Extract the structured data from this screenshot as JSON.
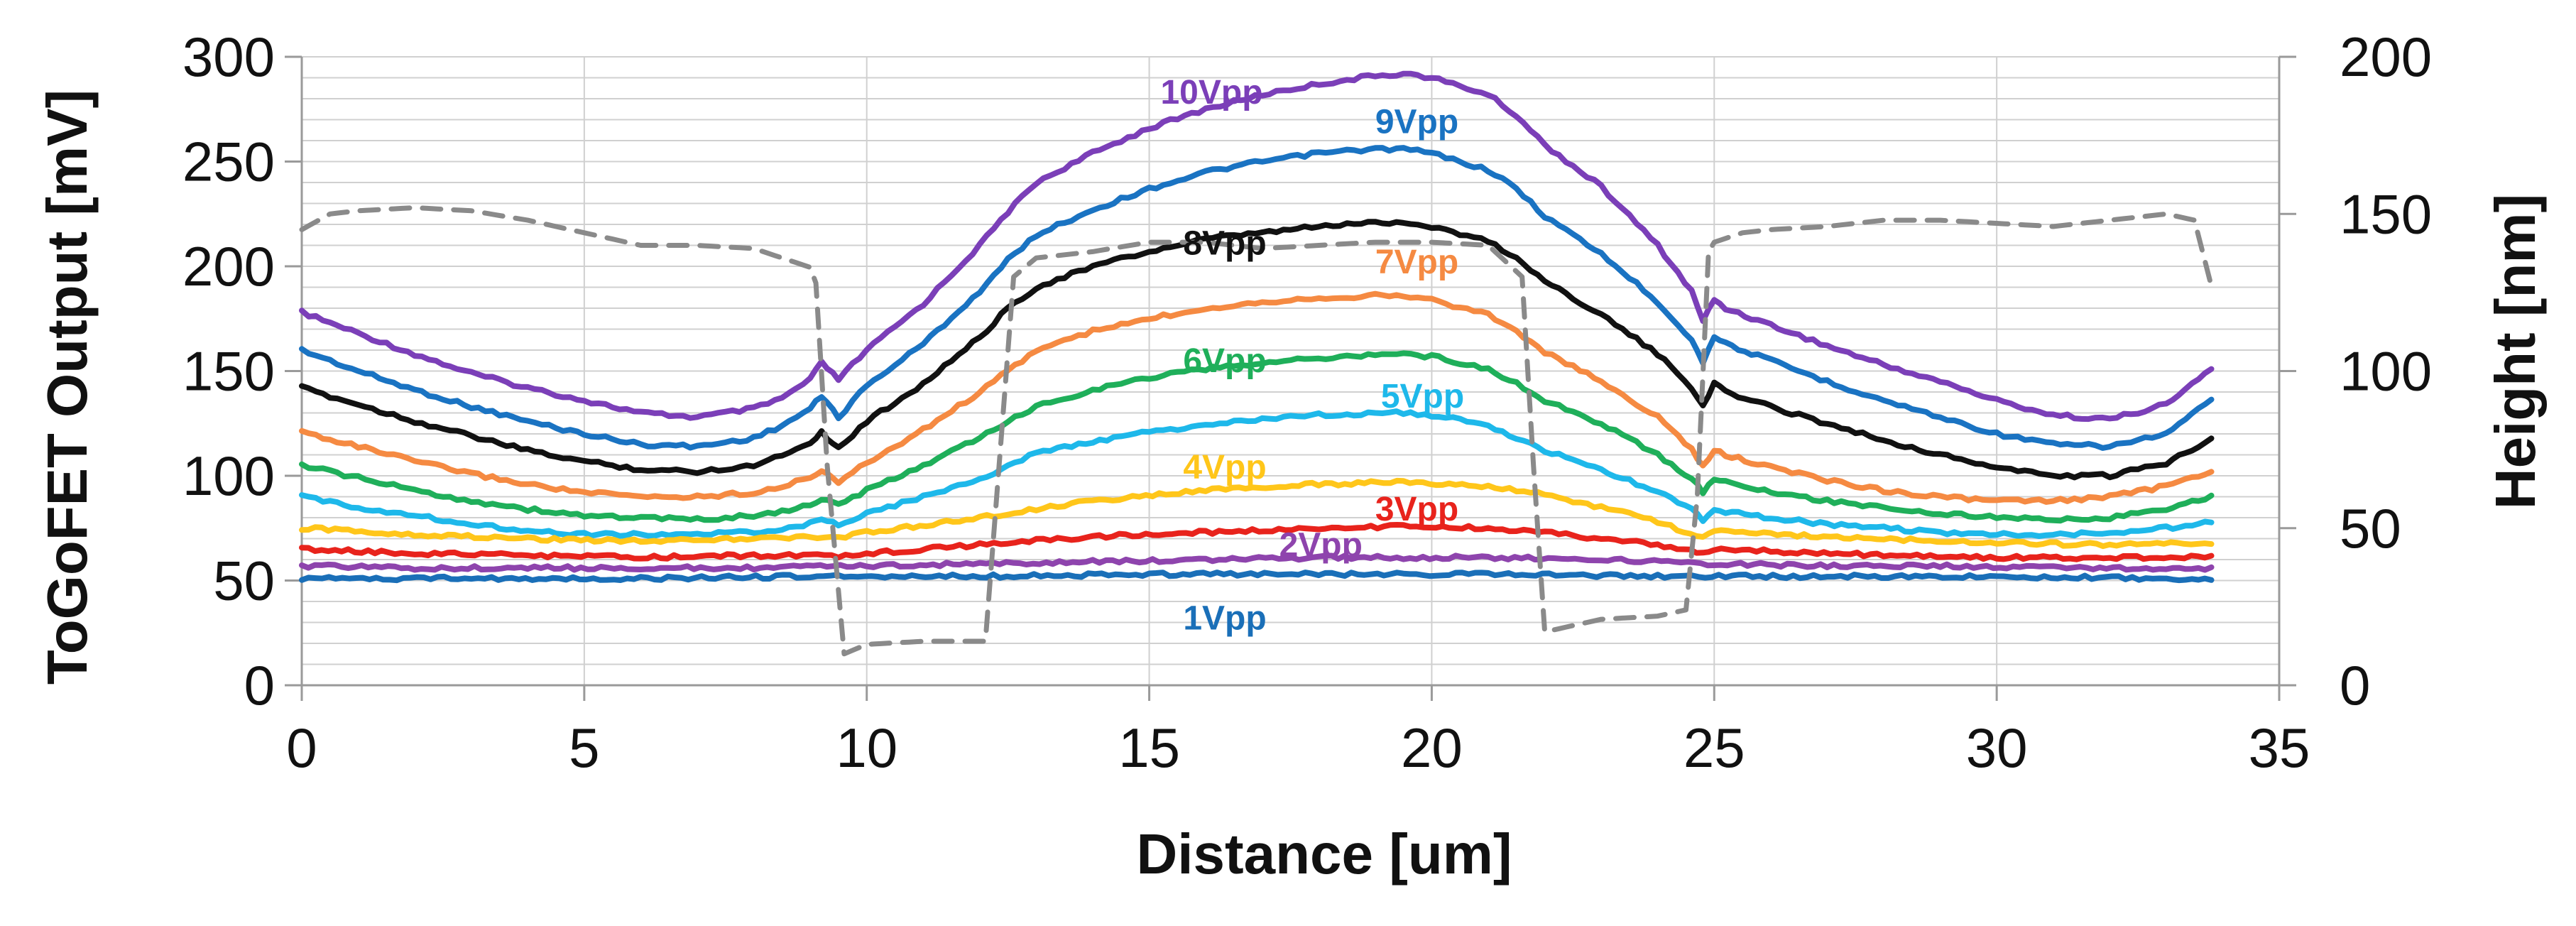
{
  "chart_data": {
    "type": "line",
    "title": "",
    "xlabel": "Distance [um]",
    "ylabel": "ToGoFET Output [mV]",
    "y2label": "Height [nm]",
    "xlim": [
      0,
      35
    ],
    "ylim": [
      0,
      300
    ],
    "y2lim": [
      0,
      200
    ],
    "x_ticks": [
      "0",
      "5",
      "10",
      "15",
      "20",
      "25",
      "30",
      "35"
    ],
    "y_ticks": [
      "0",
      "50",
      "100",
      "150",
      "200",
      "250",
      "300"
    ],
    "y2_ticks": [
      "0",
      "50",
      "100",
      "150",
      "200"
    ],
    "grid": true,
    "series": [
      {
        "name": "10Vpp",
        "color": "#7B3FB8",
        "axis": "left",
        "x": [
          0,
          1,
          2,
          3,
          4,
          5,
          6,
          7,
          8,
          8.5,
          9,
          9.2,
          9.5,
          10,
          11,
          12,
          12.5,
          13,
          14,
          15,
          16,
          17,
          18,
          19,
          19.5,
          20,
          21,
          21.5,
          22,
          23,
          24,
          24.6,
          24.8,
          25,
          25.2,
          26,
          27,
          28,
          29,
          30,
          31,
          32,
          33,
          33.8
        ],
        "values": [
          178,
          168,
          158,
          149,
          142,
          136,
          130,
          128,
          132,
          137,
          146,
          154,
          146,
          160,
          182,
          210,
          226,
          240,
          254,
          266,
          275,
          282,
          287,
          291,
          292,
          290,
          282,
          272,
          258,
          238,
          210,
          188,
          174,
          184,
          180,
          172,
          162,
          153,
          145,
          136,
          129,
          127,
          134,
          151
        ]
      },
      {
        "name": "9Vpp",
        "color": "#1A73C2",
        "axis": "left",
        "x": [
          0,
          1,
          2,
          3,
          4,
          5,
          6,
          7,
          8,
          8.5,
          9,
          9.2,
          9.5,
          10,
          11,
          12,
          12.5,
          13,
          14,
          15,
          16,
          17,
          18,
          19,
          19.5,
          20,
          21,
          21.5,
          22,
          23,
          24,
          24.6,
          24.8,
          25,
          25.2,
          26,
          27,
          28,
          29,
          30,
          31,
          32,
          33,
          33.8
        ],
        "values": [
          160,
          150,
          141,
          133,
          126,
          120,
          115,
          114,
          118,
          124,
          132,
          138,
          128,
          143,
          163,
          188,
          203,
          215,
          227,
          237,
          245,
          250,
          254,
          256,
          256,
          254,
          246,
          237,
          224,
          206,
          183,
          165,
          154,
          167,
          163,
          155,
          145,
          136,
          128,
          120,
          115,
          114,
          120,
          136
        ]
      },
      {
        "name": "8Vpp",
        "color": "#111111",
        "axis": "left",
        "x": [
          0,
          1,
          2,
          3,
          4,
          5,
          6,
          7,
          8,
          8.5,
          9,
          9.2,
          9.5,
          10,
          11,
          12,
          12.5,
          13,
          14,
          15,
          16,
          17,
          18,
          19,
          19.5,
          20,
          21,
          21.5,
          22,
          23,
          24,
          24.6,
          24.8,
          25,
          25.2,
          26,
          27,
          28,
          29,
          30,
          31,
          32,
          33,
          33.8
        ],
        "values": [
          142,
          134,
          126,
          119,
          112,
          107,
          103,
          102,
          105,
          110,
          116,
          121,
          113,
          126,
          144,
          166,
          180,
          190,
          200,
          207,
          213,
          216,
          219,
          221,
          221,
          219,
          212,
          204,
          193,
          177,
          158,
          142,
          134,
          144,
          140,
          133,
          125,
          117,
          110,
          104,
          100,
          100,
          106,
          118
        ]
      },
      {
        "name": "7Vpp",
        "color": "#F58A42",
        "axis": "left",
        "x": [
          0,
          1,
          2,
          3,
          4,
          5,
          6,
          7,
          8,
          8.5,
          9,
          9.2,
          9.5,
          10,
          11,
          12,
          12.5,
          13,
          14,
          15,
          16,
          17,
          18,
          19,
          19.5,
          20,
          21,
          21.5,
          22,
          23,
          24,
          24.6,
          24.8,
          25,
          25.2,
          26,
          27,
          28,
          29,
          30,
          31,
          32,
          33,
          33.8
        ],
        "values": [
          121,
          114,
          107,
          101,
          96,
          92,
          90,
          90,
          92,
          95,
          99,
          103,
          97,
          106,
          122,
          140,
          150,
          160,
          169,
          175,
          180,
          183,
          185,
          186,
          186,
          184,
          177,
          169,
          159,
          145,
          128,
          113,
          104,
          112,
          110,
          104,
          98,
          93,
          90,
          88,
          88,
          90,
          95,
          102
        ]
      },
      {
        "name": "6Vpp",
        "color": "#1FAF5A",
        "axis": "left",
        "x": [
          0,
          1,
          2,
          3,
          4,
          5,
          6,
          7,
          8,
          8.5,
          9,
          9.2,
          9.5,
          10,
          11,
          12,
          12.5,
          13,
          14,
          15,
          16,
          17,
          18,
          19,
          19.5,
          20,
          21,
          21.5,
          22,
          23,
          24,
          24.6,
          24.8,
          25,
          25.2,
          26,
          27,
          28,
          29,
          30,
          31,
          32,
          33,
          33.8
        ],
        "values": [
          105,
          99,
          93,
          88,
          84,
          81,
          80,
          79,
          81,
          83,
          86,
          89,
          86,
          93,
          105,
          118,
          126,
          133,
          141,
          147,
          151,
          154,
          156,
          158,
          158,
          157,
          151,
          144,
          136,
          125,
          110,
          99,
          92,
          99,
          97,
          92,
          88,
          85,
          82,
          80,
          79,
          80,
          84,
          90
        ]
      },
      {
        "name": "5Vpp",
        "color": "#1EB8EA",
        "axis": "left",
        "x": [
          0,
          1,
          2,
          3,
          4,
          5,
          6,
          7,
          8,
          8.5,
          9,
          9.2,
          9.5,
          10,
          11,
          12,
          12.5,
          13,
          14,
          15,
          16,
          17,
          18,
          19,
          19.5,
          20,
          21,
          21.5,
          22,
          23,
          24,
          24.6,
          24.8,
          25,
          25.2,
          26,
          27,
          28,
          29,
          30,
          31,
          32,
          33,
          33.8
        ],
        "values": [
          90,
          85,
          81,
          77,
          74,
          72,
          72,
          72,
          73,
          75,
          77,
          79,
          77,
          82,
          90,
          98,
          105,
          111,
          116,
          121,
          124,
          127,
          129,
          130,
          130,
          129,
          124,
          118,
          112,
          103,
          92,
          84,
          79,
          84,
          83,
          80,
          77,
          75,
          73,
          72,
          72,
          73,
          75,
          78
        ]
      },
      {
        "name": "4Vpp",
        "color": "#FFC61A",
        "axis": "left",
        "x": [
          0,
          2,
          4,
          6,
          8,
          9,
          9.5,
          10,
          12,
          13,
          14,
          16,
          18,
          19.5,
          21,
          22,
          23,
          24,
          24.8,
          25,
          26,
          28,
          30,
          32,
          33.8
        ],
        "values": [
          75,
          72,
          70,
          69,
          70,
          71,
          70,
          73,
          80,
          84,
          88,
          93,
          96,
          97,
          95,
          91,
          85,
          78,
          70,
          74,
          72,
          70,
          68,
          67,
          68
        ]
      },
      {
        "name": "3Vpp",
        "color": "#E8231C",
        "axis": "left",
        "x": [
          0,
          2,
          4,
          6,
          8,
          9,
          9.5,
          10,
          12,
          13,
          14,
          16,
          18,
          19.5,
          21,
          22,
          23,
          24,
          24.8,
          25,
          26,
          28,
          30,
          32,
          33.8
        ],
        "values": [
          65,
          63,
          62,
          61,
          62,
          62,
          61,
          63,
          67,
          69,
          71,
          73,
          75,
          76,
          75,
          73,
          70,
          67,
          63,
          65,
          64,
          62,
          61,
          61,
          61
        ]
      },
      {
        "name": "2Vpp",
        "color": "#8E44AD",
        "axis": "left",
        "x": [
          0,
          2,
          4,
          6,
          8,
          10,
          12,
          14,
          16,
          18,
          19.5,
          21,
          23,
          25,
          27,
          29,
          31,
          33,
          33.8
        ],
        "values": [
          57,
          56,
          56,
          56,
          56,
          57,
          58,
          59,
          60,
          61,
          61,
          61,
          60,
          58,
          57,
          57,
          56,
          56,
          56
        ]
      },
      {
        "name": "1Vpp",
        "color": "#1A6FB8",
        "axis": "left",
        "x": [
          0,
          3,
          6,
          9,
          12,
          15,
          18,
          19.5,
          21,
          24,
          27,
          30,
          33,
          33.8
        ],
        "values": [
          51,
          51,
          51,
          52,
          52,
          53,
          53,
          53,
          53,
          52,
          52,
          52,
          51,
          51
        ]
      },
      {
        "name": "Height",
        "color": "#8A8A8A",
        "axis": "right",
        "dashed": true,
        "x": [
          0,
          0.5,
          1,
          2,
          3,
          4,
          5,
          6,
          7,
          8,
          9,
          9.1,
          9.3,
          9.6,
          10,
          11,
          11.5,
          12.1,
          12.3,
          12.6,
          13,
          14,
          15,
          16,
          17,
          18,
          19,
          20,
          21,
          21.6,
          21.8,
          22,
          22.5,
          23,
          24,
          24.5,
          24.7,
          24.9,
          25,
          25.5,
          26,
          27,
          28,
          29,
          30,
          31,
          32,
          33,
          33.5,
          33.8
        ],
        "values": [
          145,
          150,
          151,
          152,
          151,
          148,
          144,
          140,
          140,
          139,
          133,
          128,
          70,
          10,
          13,
          14,
          14,
          14,
          60,
          130,
          136,
          138,
          141,
          141,
          139,
          140,
          141,
          141,
          140,
          130,
          70,
          17,
          19,
          21,
          22,
          24,
          60,
          138,
          141,
          144,
          145,
          146,
          148,
          148,
          147,
          146,
          148,
          150,
          148,
          127
        ]
      }
    ],
    "annotations": [
      {
        "text": "10Vpp",
        "color": "#7B3FB8",
        "x": 15.2,
        "y": 283
      },
      {
        "text": "9Vpp",
        "color": "#1A73C2",
        "x": 19.0,
        "y": 269
      },
      {
        "text": "8Vpp",
        "color": "#111111",
        "x": 15.6,
        "y": 211
      },
      {
        "text": "7Vpp",
        "color": "#F58A42",
        "x": 19.0,
        "y": 202
      },
      {
        "text": "6Vpp",
        "color": "#1FAF5A",
        "x": 15.6,
        "y": 155
      },
      {
        "text": "5Vpp",
        "color": "#1EB8EA",
        "x": 19.1,
        "y": 138
      },
      {
        "text": "4Vpp",
        "color": "#FFC61A",
        "x": 15.6,
        "y": 104
      },
      {
        "text": "3Vpp",
        "color": "#E8231C",
        "x": 19.0,
        "y": 84
      },
      {
        "text": "2Vpp",
        "color": "#8E44AD",
        "x": 17.3,
        "y": 67
      },
      {
        "text": "1Vpp",
        "color": "#1A6FB8",
        "x": 15.6,
        "y": 32
      }
    ]
  }
}
